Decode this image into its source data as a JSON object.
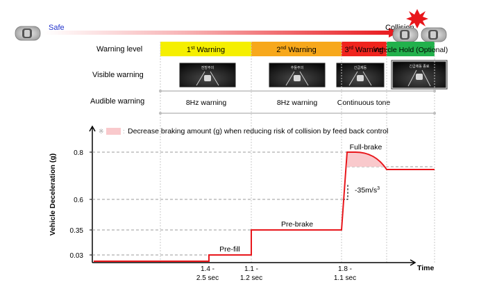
{
  "top": {
    "safe_label": "Safe",
    "collision_label": "Collision"
  },
  "rows": {
    "warning_level": "Warning level",
    "visible_warning": "Visible warning",
    "audible_warning": "Audible warning"
  },
  "stages": [
    {
      "pre": "1",
      "sup": "st",
      "post": " Warning",
      "color": "#f5ef00"
    },
    {
      "pre": "2",
      "sup": "nd",
      "post": " Warning",
      "color": "#f7a81b"
    },
    {
      "pre": "3",
      "sup": "rd",
      "post": " Warning",
      "color": "#f0241d"
    },
    {
      "pre": "Vehicle Hold (Optional)",
      "sup": "",
      "post": "",
      "color": "#22b14c"
    }
  ],
  "screens": [
    {
      "text": "전방주의"
    },
    {
      "text": "추돌주의"
    },
    {
      "text": "긴급제동"
    },
    {
      "text": "긴급제동 종료"
    }
  ],
  "audible": [
    "8Hz warning",
    "8Hz warning",
    "Continuous tone"
  ],
  "chart_data": {
    "type": "line",
    "ylabel": "Vehicle Deceleration (g)",
    "xlabel": "Time",
    "ytick_labels": [
      "0.03",
      "0.35",
      "0.6",
      "0.8"
    ],
    "legend_symbol": "※",
    "legend_text": "Decrease braking amount (g) when reducing risk of collision by feed back control",
    "phases": [
      {
        "name": "Pre-fill",
        "deceleration_g": 0.03,
        "duration_label": [
          "1.4 -",
          "2.5 sec"
        ]
      },
      {
        "name": "Pre-brake",
        "deceleration_g": 0.35,
        "duration_label": [
          "1.1 -",
          "1.2 sec"
        ]
      },
      {
        "name": "Full-brake",
        "deceleration_g": 0.8,
        "duration_label": [
          "1.8 -",
          "1.1 sec"
        ]
      }
    ],
    "jerk_label": "-35m/s",
    "jerk_exp": "3",
    "shaded_color": "#f9c9cc",
    "line_color": "#e8161b"
  }
}
